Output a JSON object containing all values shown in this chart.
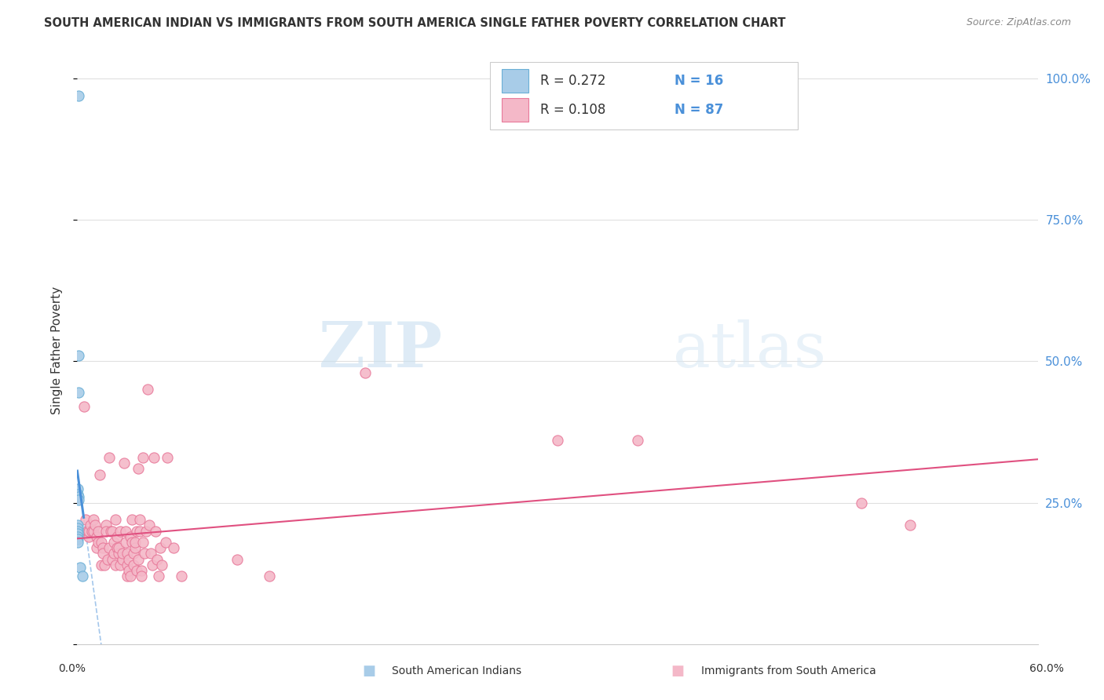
{
  "title": "SOUTH AMERICAN INDIAN VS IMMIGRANTS FROM SOUTH AMERICA SINGLE FATHER POVERTY CORRELATION CHART",
  "source": "Source: ZipAtlas.com",
  "ylabel": "Single Father Poverty",
  "blue_color": "#a8cce8",
  "pink_color": "#f4b8c8",
  "blue_edge_color": "#6aafd6",
  "pink_edge_color": "#e8799a",
  "blue_line_color": "#4a90d9",
  "pink_line_color": "#e05080",
  "blue_scatter": [
    [
      0.001,
      0.97
    ],
    [
      0.001,
      0.51
    ],
    [
      0.001,
      0.445
    ],
    [
      0.0005,
      0.275
    ],
    [
      0.0005,
      0.265
    ],
    [
      0.001,
      0.26
    ],
    [
      0.001,
      0.255
    ],
    [
      0.0005,
      0.21
    ],
    [
      0.0005,
      0.205
    ],
    [
      0.0005,
      0.2
    ],
    [
      0.0005,
      0.195
    ],
    [
      0.0005,
      0.19
    ],
    [
      0.0005,
      0.185
    ],
    [
      0.0005,
      0.18
    ],
    [
      0.002,
      0.135
    ],
    [
      0.003,
      0.12
    ]
  ],
  "pink_scatter": [
    [
      0.004,
      0.42
    ],
    [
      0.005,
      0.22
    ],
    [
      0.006,
      0.2
    ],
    [
      0.007,
      0.19
    ],
    [
      0.007,
      0.2
    ],
    [
      0.008,
      0.21
    ],
    [
      0.009,
      0.2
    ],
    [
      0.01,
      0.2
    ],
    [
      0.01,
      0.22
    ],
    [
      0.011,
      0.21
    ],
    [
      0.012,
      0.19
    ],
    [
      0.012,
      0.17
    ],
    [
      0.013,
      0.18
    ],
    [
      0.013,
      0.2
    ],
    [
      0.014,
      0.3
    ],
    [
      0.015,
      0.18
    ],
    [
      0.015,
      0.14
    ],
    [
      0.016,
      0.17
    ],
    [
      0.016,
      0.16
    ],
    [
      0.017,
      0.14
    ],
    [
      0.018,
      0.21
    ],
    [
      0.018,
      0.2
    ],
    [
      0.019,
      0.15
    ],
    [
      0.02,
      0.17
    ],
    [
      0.02,
      0.33
    ],
    [
      0.021,
      0.2
    ],
    [
      0.022,
      0.2
    ],
    [
      0.022,
      0.15
    ],
    [
      0.023,
      0.18
    ],
    [
      0.023,
      0.16
    ],
    [
      0.024,
      0.14
    ],
    [
      0.024,
      0.22
    ],
    [
      0.025,
      0.17
    ],
    [
      0.025,
      0.19
    ],
    [
      0.026,
      0.16
    ],
    [
      0.026,
      0.17
    ],
    [
      0.027,
      0.14
    ],
    [
      0.027,
      0.2
    ],
    [
      0.028,
      0.15
    ],
    [
      0.028,
      0.16
    ],
    [
      0.029,
      0.32
    ],
    [
      0.03,
      0.2
    ],
    [
      0.03,
      0.18
    ],
    [
      0.031,
      0.14
    ],
    [
      0.031,
      0.12
    ],
    [
      0.031,
      0.16
    ],
    [
      0.032,
      0.15
    ],
    [
      0.032,
      0.13
    ],
    [
      0.033,
      0.12
    ],
    [
      0.033,
      0.19
    ],
    [
      0.034,
      0.22
    ],
    [
      0.034,
      0.18
    ],
    [
      0.035,
      0.14
    ],
    [
      0.035,
      0.16
    ],
    [
      0.036,
      0.17
    ],
    [
      0.036,
      0.18
    ],
    [
      0.037,
      0.13
    ],
    [
      0.037,
      0.2
    ],
    [
      0.038,
      0.15
    ],
    [
      0.038,
      0.31
    ],
    [
      0.039,
      0.22
    ],
    [
      0.039,
      0.2
    ],
    [
      0.04,
      0.13
    ],
    [
      0.04,
      0.12
    ],
    [
      0.041,
      0.18
    ],
    [
      0.041,
      0.33
    ],
    [
      0.042,
      0.16
    ],
    [
      0.043,
      0.2
    ],
    [
      0.044,
      0.45
    ],
    [
      0.045,
      0.21
    ],
    [
      0.046,
      0.16
    ],
    [
      0.047,
      0.14
    ],
    [
      0.048,
      0.33
    ],
    [
      0.049,
      0.2
    ],
    [
      0.05,
      0.15
    ],
    [
      0.051,
      0.12
    ],
    [
      0.052,
      0.17
    ],
    [
      0.053,
      0.14
    ],
    [
      0.055,
      0.18
    ],
    [
      0.056,
      0.33
    ],
    [
      0.06,
      0.17
    ],
    [
      0.065,
      0.12
    ],
    [
      0.1,
      0.15
    ],
    [
      0.12,
      0.12
    ],
    [
      0.18,
      0.48
    ],
    [
      0.3,
      0.36
    ],
    [
      0.35,
      0.36
    ],
    [
      0.49,
      0.25
    ],
    [
      0.52,
      0.21
    ]
  ],
  "xlim": [
    0,
    0.6
  ],
  "ylim": [
    0,
    1.04
  ],
  "blue_reg": {
    "slope": 45.0,
    "intercept": 0.16
  },
  "pink_reg": {
    "slope": 0.12,
    "intercept": 0.175
  },
  "watermark_zip": "ZIP",
  "watermark_atlas": "atlas",
  "grid_color": "#e0e0e0",
  "legend_R_color": "#333333",
  "legend_N_color": "#4a90d9"
}
